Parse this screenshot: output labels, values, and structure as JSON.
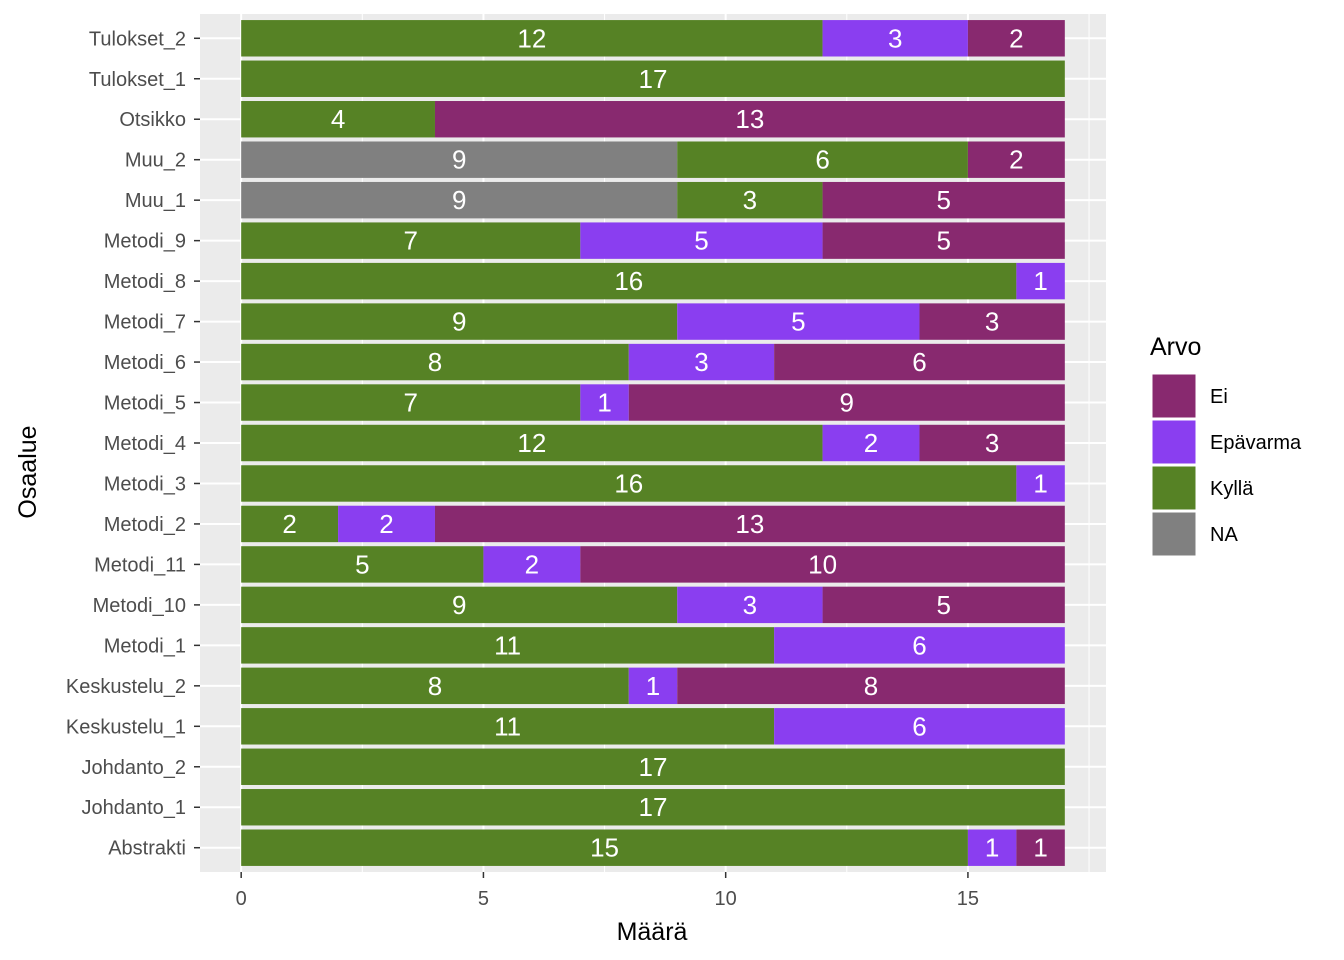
{
  "chart_data": {
    "type": "bar",
    "orientation": "horizontal",
    "stacked": true,
    "xlabel": "Määrä",
    "ylabel": "Osaalue",
    "xlim": [
      -0.85,
      17.85
    ],
    "xticks": [
      "0",
      "5",
      "10",
      "15"
    ],
    "grid": true,
    "legend": {
      "title": "Arvo",
      "position": "right"
    },
    "categories": [
      "Tulokset_2",
      "Tulokset_1",
      "Otsikko",
      "Muu_2",
      "Muu_1",
      "Metodi_9",
      "Metodi_8",
      "Metodi_7",
      "Metodi_6",
      "Metodi_5",
      "Metodi_4",
      "Metodi_3",
      "Metodi_2",
      "Metodi_11",
      "Metodi_10",
      "Metodi_1",
      "Keskustelu_2",
      "Keskustelu_1",
      "Johdanto_2",
      "Johdanto_1",
      "Abstrakti"
    ],
    "series": [
      {
        "name": "Ei",
        "color": "#88296f",
        "values": [
          2,
          0,
          13,
          2,
          5,
          5,
          0,
          3,
          6,
          9,
          3,
          0,
          13,
          10,
          5,
          0,
          8,
          0,
          0,
          0,
          1
        ]
      },
      {
        "name": "Epävarma",
        "color": "#8a3ef0",
        "values": [
          3,
          0,
          0,
          0,
          0,
          5,
          1,
          5,
          3,
          1,
          2,
          1,
          2,
          2,
          3,
          6,
          1,
          6,
          0,
          0,
          1
        ]
      },
      {
        "name": "Kyllä",
        "color": "#568225",
        "values": [
          12,
          17,
          4,
          6,
          3,
          7,
          16,
          9,
          8,
          7,
          12,
          16,
          2,
          5,
          9,
          11,
          8,
          11,
          17,
          17,
          15
        ]
      },
      {
        "name": "NA",
        "color": "#808080",
        "values": [
          0,
          0,
          0,
          9,
          9,
          0,
          0,
          0,
          0,
          0,
          0,
          0,
          0,
          0,
          0,
          0,
          0,
          0,
          0,
          0,
          0
        ]
      }
    ],
    "stack_order_left_to_right": [
      "NA",
      "Kyllä",
      "Epävarma",
      "Ei"
    ]
  }
}
